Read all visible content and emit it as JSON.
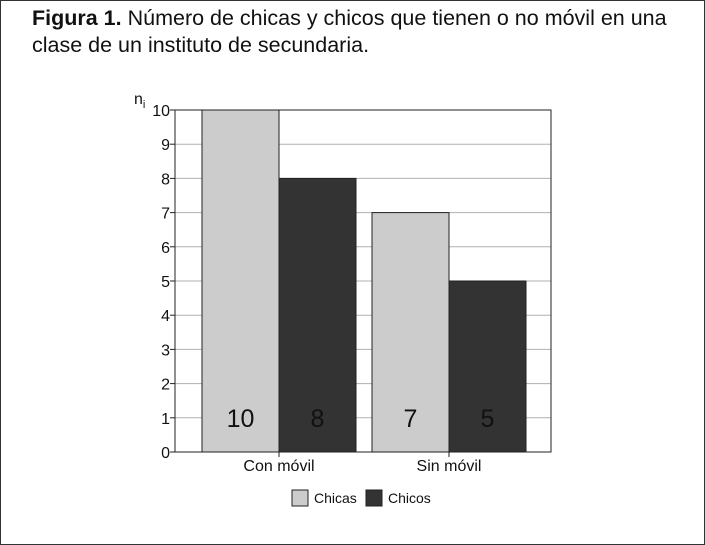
{
  "figure": {
    "label": "Figura 1.",
    "caption": "Número de chicas y chicos que tienen o no móvil en una clase de un instituto de secundaria."
  },
  "chart_data": {
    "type": "bar",
    "ylabel": "n",
    "ylabel_subscript": "i",
    "ylim": [
      0,
      10
    ],
    "yticks": [
      "0",
      "1",
      "2",
      "3",
      "4",
      "5",
      "6",
      "7",
      "8",
      "9",
      "10"
    ],
    "categories": [
      "Con móvil",
      "Sin móvil"
    ],
    "series": [
      {
        "name": "Chicas",
        "values": [
          10,
          7
        ],
        "color": "#cccccc"
      },
      {
        "name": "Chicos",
        "values": [
          8,
          5
        ],
        "color": "#333333"
      }
    ],
    "data_labels": [
      "10",
      "8",
      "7",
      "5"
    ],
    "grid": true,
    "legend_placement": "bottom"
  }
}
